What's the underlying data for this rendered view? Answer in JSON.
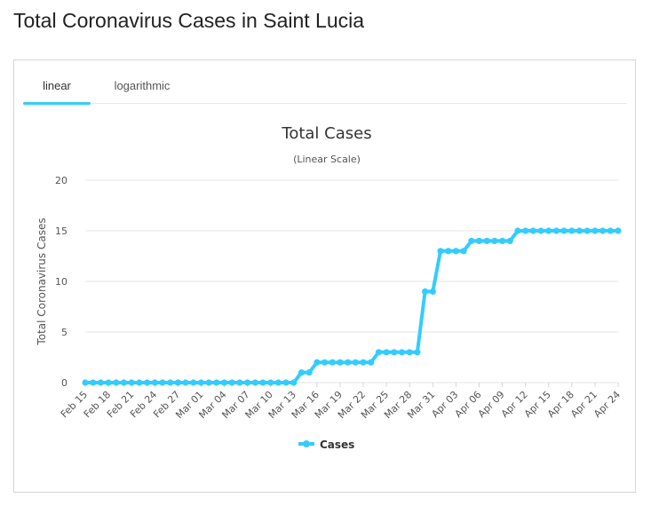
{
  "page": {
    "title": "Total Coronavirus Cases in Saint Lucia"
  },
  "tabs": [
    {
      "label": "linear",
      "active": true
    },
    {
      "label": "logarithmic",
      "active": false
    }
  ],
  "colors": {
    "series": "#33ccff",
    "grid": "#e6e6e6",
    "tab_underline": "#33ccff"
  },
  "chart_data": {
    "type": "line",
    "title": "Total Cases",
    "subtitle": "(Linear Scale)",
    "ylabel": "Total Coronavirus Cases",
    "xlabel": "",
    "ylim": [
      0,
      20
    ],
    "yticks": [
      0,
      5,
      10,
      15,
      20
    ],
    "grid": true,
    "legend": "bottom-center",
    "x": [
      "Feb 15",
      "Feb 16",
      "Feb 17",
      "Feb 18",
      "Feb 19",
      "Feb 20",
      "Feb 21",
      "Feb 22",
      "Feb 23",
      "Feb 24",
      "Feb 25",
      "Feb 26",
      "Feb 27",
      "Feb 28",
      "Feb 29",
      "Mar 01",
      "Mar 02",
      "Mar 03",
      "Mar 04",
      "Mar 05",
      "Mar 06",
      "Mar 07",
      "Mar 08",
      "Mar 09",
      "Mar 10",
      "Mar 11",
      "Mar 12",
      "Mar 13",
      "Mar 14",
      "Mar 15",
      "Mar 16",
      "Mar 17",
      "Mar 18",
      "Mar 19",
      "Mar 20",
      "Mar 21",
      "Mar 22",
      "Mar 23",
      "Mar 24",
      "Mar 25",
      "Mar 26",
      "Mar 27",
      "Mar 28",
      "Mar 29",
      "Mar 30",
      "Mar 31",
      "Apr 01",
      "Apr 02",
      "Apr 03",
      "Apr 04",
      "Apr 05",
      "Apr 06",
      "Apr 07",
      "Apr 08",
      "Apr 09",
      "Apr 10",
      "Apr 11",
      "Apr 12",
      "Apr 13",
      "Apr 14",
      "Apr 15",
      "Apr 16",
      "Apr 17",
      "Apr 18",
      "Apr 19",
      "Apr 20",
      "Apr 21",
      "Apr 22",
      "Apr 23",
      "Apr 24"
    ],
    "tick_labels": [
      "Feb 15",
      "Feb 18",
      "Feb 21",
      "Feb 24",
      "Feb 27",
      "Mar 01",
      "Mar 04",
      "Mar 07",
      "Mar 10",
      "Mar 13",
      "Mar 16",
      "Mar 19",
      "Mar 22",
      "Mar 25",
      "Mar 28",
      "Mar 31",
      "Apr 03",
      "Apr 06",
      "Apr 09",
      "Apr 12",
      "Apr 15",
      "Apr 18",
      "Apr 21",
      "Apr 24"
    ],
    "series": [
      {
        "name": "Cases",
        "values": [
          0,
          0,
          0,
          0,
          0,
          0,
          0,
          0,
          0,
          0,
          0,
          0,
          0,
          0,
          0,
          0,
          0,
          0,
          0,
          0,
          0,
          0,
          0,
          0,
          0,
          0,
          0,
          0,
          1,
          1,
          2,
          2,
          2,
          2,
          2,
          2,
          2,
          2,
          3,
          3,
          3,
          3,
          3,
          3,
          9,
          9,
          13,
          13,
          13,
          13,
          14,
          14,
          14,
          14,
          14,
          14,
          15,
          15,
          15,
          15,
          15,
          15,
          15,
          15,
          15,
          15,
          15,
          15,
          15,
          15
        ]
      }
    ]
  }
}
